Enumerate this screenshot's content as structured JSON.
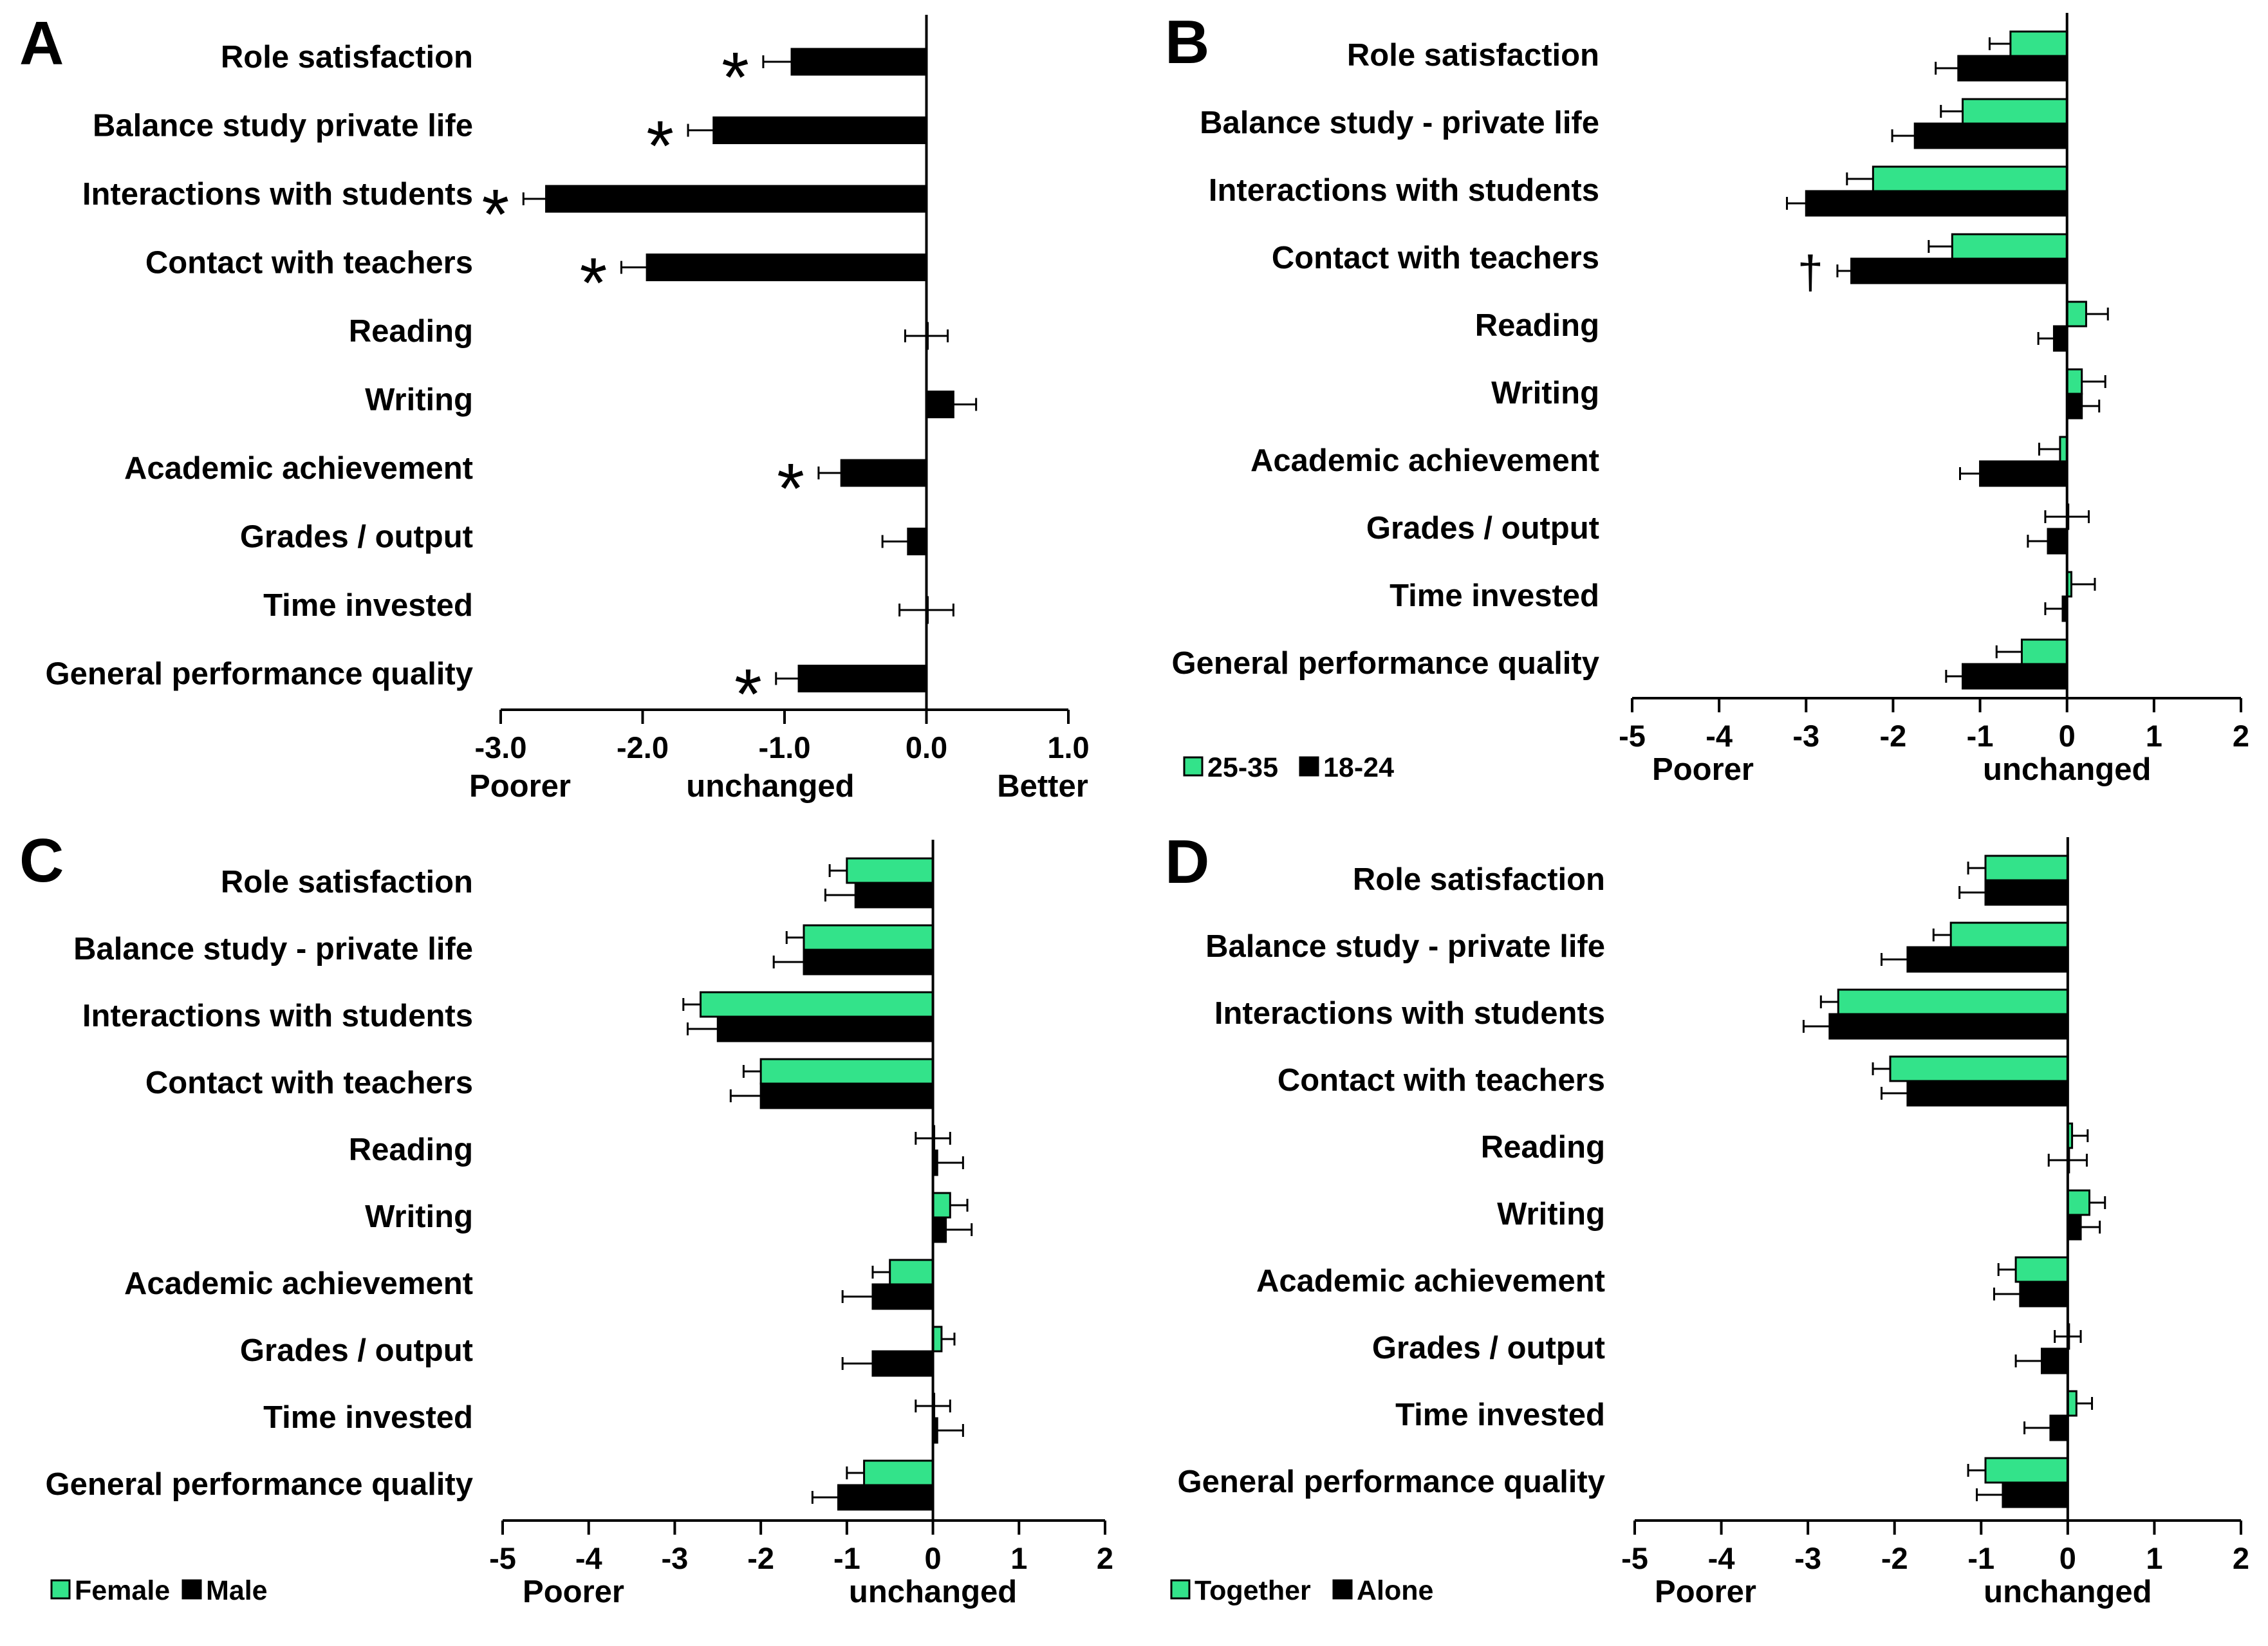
{
  "colors": {
    "green": "#33e38a",
    "black": "#000000"
  },
  "chart_data": [
    {
      "panel": "A",
      "type": "bar",
      "orientation": "horizontal",
      "categories": [
        "Role satisfaction",
        "Balance study   private life",
        "Interactions with students",
        "Contact with teachers",
        "Reading",
        "Writing",
        "Academic achievement",
        "Grades / output",
        "Time invested",
        "General performance quality"
      ],
      "series": [
        {
          "name": "",
          "color": "#000000",
          "values": [
            -0.95,
            -1.5,
            -2.68,
            -1.97,
            0.0,
            0.19,
            -0.6,
            -0.13,
            0.0,
            -0.9
          ],
          "errors": [
            0.2,
            0.18,
            0.16,
            0.18,
            0.15,
            0.16,
            0.16,
            0.18,
            0.19,
            0.16
          ]
        }
      ],
      "markers": [
        "*",
        "*",
        "*",
        "*",
        "",
        "",
        "*",
        "",
        "",
        "*"
      ],
      "xlim": [
        -3.0,
        1.0
      ],
      "xticks": [
        "-3.0",
        "-2.0",
        "-1.0",
        "0.0",
        "1.0"
      ],
      "xlabel_left": "Poorer",
      "xlabel_center": "unchanged",
      "xlabel_right": "Better",
      "legend": []
    },
    {
      "panel": "B",
      "type": "bar",
      "orientation": "horizontal",
      "categories": [
        "Role satisfaction",
        "Balance study - private life",
        "Interactions with students",
        "Contact with teachers",
        "Reading",
        "Writing",
        "Academic achievement",
        "Grades / output",
        "Time invested",
        "General performance quality"
      ],
      "series": [
        {
          "name": "25-35",
          "color": "#33e38a",
          "values": [
            -0.65,
            -1.2,
            -2.23,
            -1.32,
            0.22,
            0.17,
            -0.08,
            0.0,
            0.05,
            -0.52
          ],
          "errors": [
            0.24,
            0.25,
            0.3,
            0.27,
            0.25,
            0.27,
            0.24,
            0.25,
            0.27,
            0.29
          ]
        },
        {
          "name": "18-24",
          "color": "#000000",
          "values": [
            -1.25,
            -1.75,
            -3.0,
            -2.48,
            -0.15,
            0.17,
            -1.0,
            -0.22,
            -0.05,
            -1.2
          ],
          "errors": [
            0.26,
            0.26,
            0.22,
            0.16,
            0.18,
            0.2,
            0.23,
            0.23,
            0.2,
            0.19
          ]
        }
      ],
      "markers": [
        "",
        "",
        "",
        "†",
        "",
        "",
        "",
        "",
        "",
        ""
      ],
      "xlim": [
        -5,
        2
      ],
      "xticks": [
        "-5",
        "-4",
        "-3",
        "-2",
        "-1",
        "0",
        "1",
        "2"
      ],
      "xlabel_left": "Poorer",
      "xlabel_center": "unchanged",
      "xlabel_right": "",
      "legend": [
        "25-35",
        "18-24"
      ]
    },
    {
      "panel": "C",
      "type": "bar",
      "orientation": "horizontal",
      "categories": [
        "Role satisfaction",
        "Balance study - private life",
        "Interactions with students",
        "Contact with teachers",
        "Reading",
        "Writing",
        "Academic achievement",
        "Grades / output",
        "Time invested",
        "General performance quality"
      ],
      "series": [
        {
          "name": "Female",
          "color": "#33e38a",
          "values": [
            -1.0,
            -1.5,
            -2.7,
            -2.0,
            0.0,
            0.2,
            -0.5,
            0.1,
            0.0,
            -0.8
          ],
          "errors": [
            0.2,
            0.2,
            0.2,
            0.2,
            0.2,
            0.2,
            0.2,
            0.15,
            0.2,
            0.2
          ]
        },
        {
          "name": "Male",
          "color": "#000000",
          "values": [
            -0.9,
            -1.5,
            -2.5,
            -2.0,
            0.05,
            0.15,
            -0.7,
            -0.7,
            0.05,
            -1.1
          ],
          "errors": [
            0.35,
            0.35,
            0.35,
            0.35,
            0.3,
            0.3,
            0.35,
            0.35,
            0.3,
            0.3
          ]
        }
      ],
      "markers": [],
      "xlim": [
        -5,
        2
      ],
      "xticks": [
        "-5",
        "-4",
        "-3",
        "-2",
        "-1",
        "0",
        "1",
        "2"
      ],
      "xlabel_left": "Poorer",
      "xlabel_center": "unchanged",
      "xlabel_right": "",
      "legend": [
        "Female",
        "Male"
      ]
    },
    {
      "panel": "D",
      "type": "bar",
      "orientation": "horizontal",
      "categories": [
        "Role satisfaction",
        "Balance study - private life",
        "Interactions with students",
        "Contact with teachers",
        "Reading",
        "Writing",
        "Academic achievement",
        "Grades / output",
        "Time invested",
        "General performance quality"
      ],
      "series": [
        {
          "name": "Together",
          "color": "#33e38a",
          "values": [
            -0.95,
            -1.35,
            -2.65,
            -2.05,
            0.05,
            0.25,
            -0.6,
            0.0,
            0.1,
            -0.95
          ],
          "errors": [
            0.2,
            0.2,
            0.2,
            0.2,
            0.18,
            0.18,
            0.2,
            0.15,
            0.18,
            0.2
          ]
        },
        {
          "name": "Alone",
          "color": "#000000",
          "values": [
            -0.95,
            -1.85,
            -2.75,
            -1.85,
            0.0,
            0.15,
            -0.55,
            -0.3,
            -0.2,
            -0.75
          ],
          "errors": [
            0.3,
            0.3,
            0.3,
            0.3,
            0.22,
            0.22,
            0.3,
            0.3,
            0.3,
            0.3
          ]
        }
      ],
      "markers": [],
      "xlim": [
        -5,
        2
      ],
      "xticks": [
        "-5",
        "-4",
        "-3",
        "-2",
        "-1",
        "0",
        "1",
        "2"
      ],
      "xlabel_left": "Poorer",
      "xlabel_center": "unchanged",
      "xlabel_right": "",
      "legend": [
        "Together",
        "Alone"
      ]
    }
  ]
}
